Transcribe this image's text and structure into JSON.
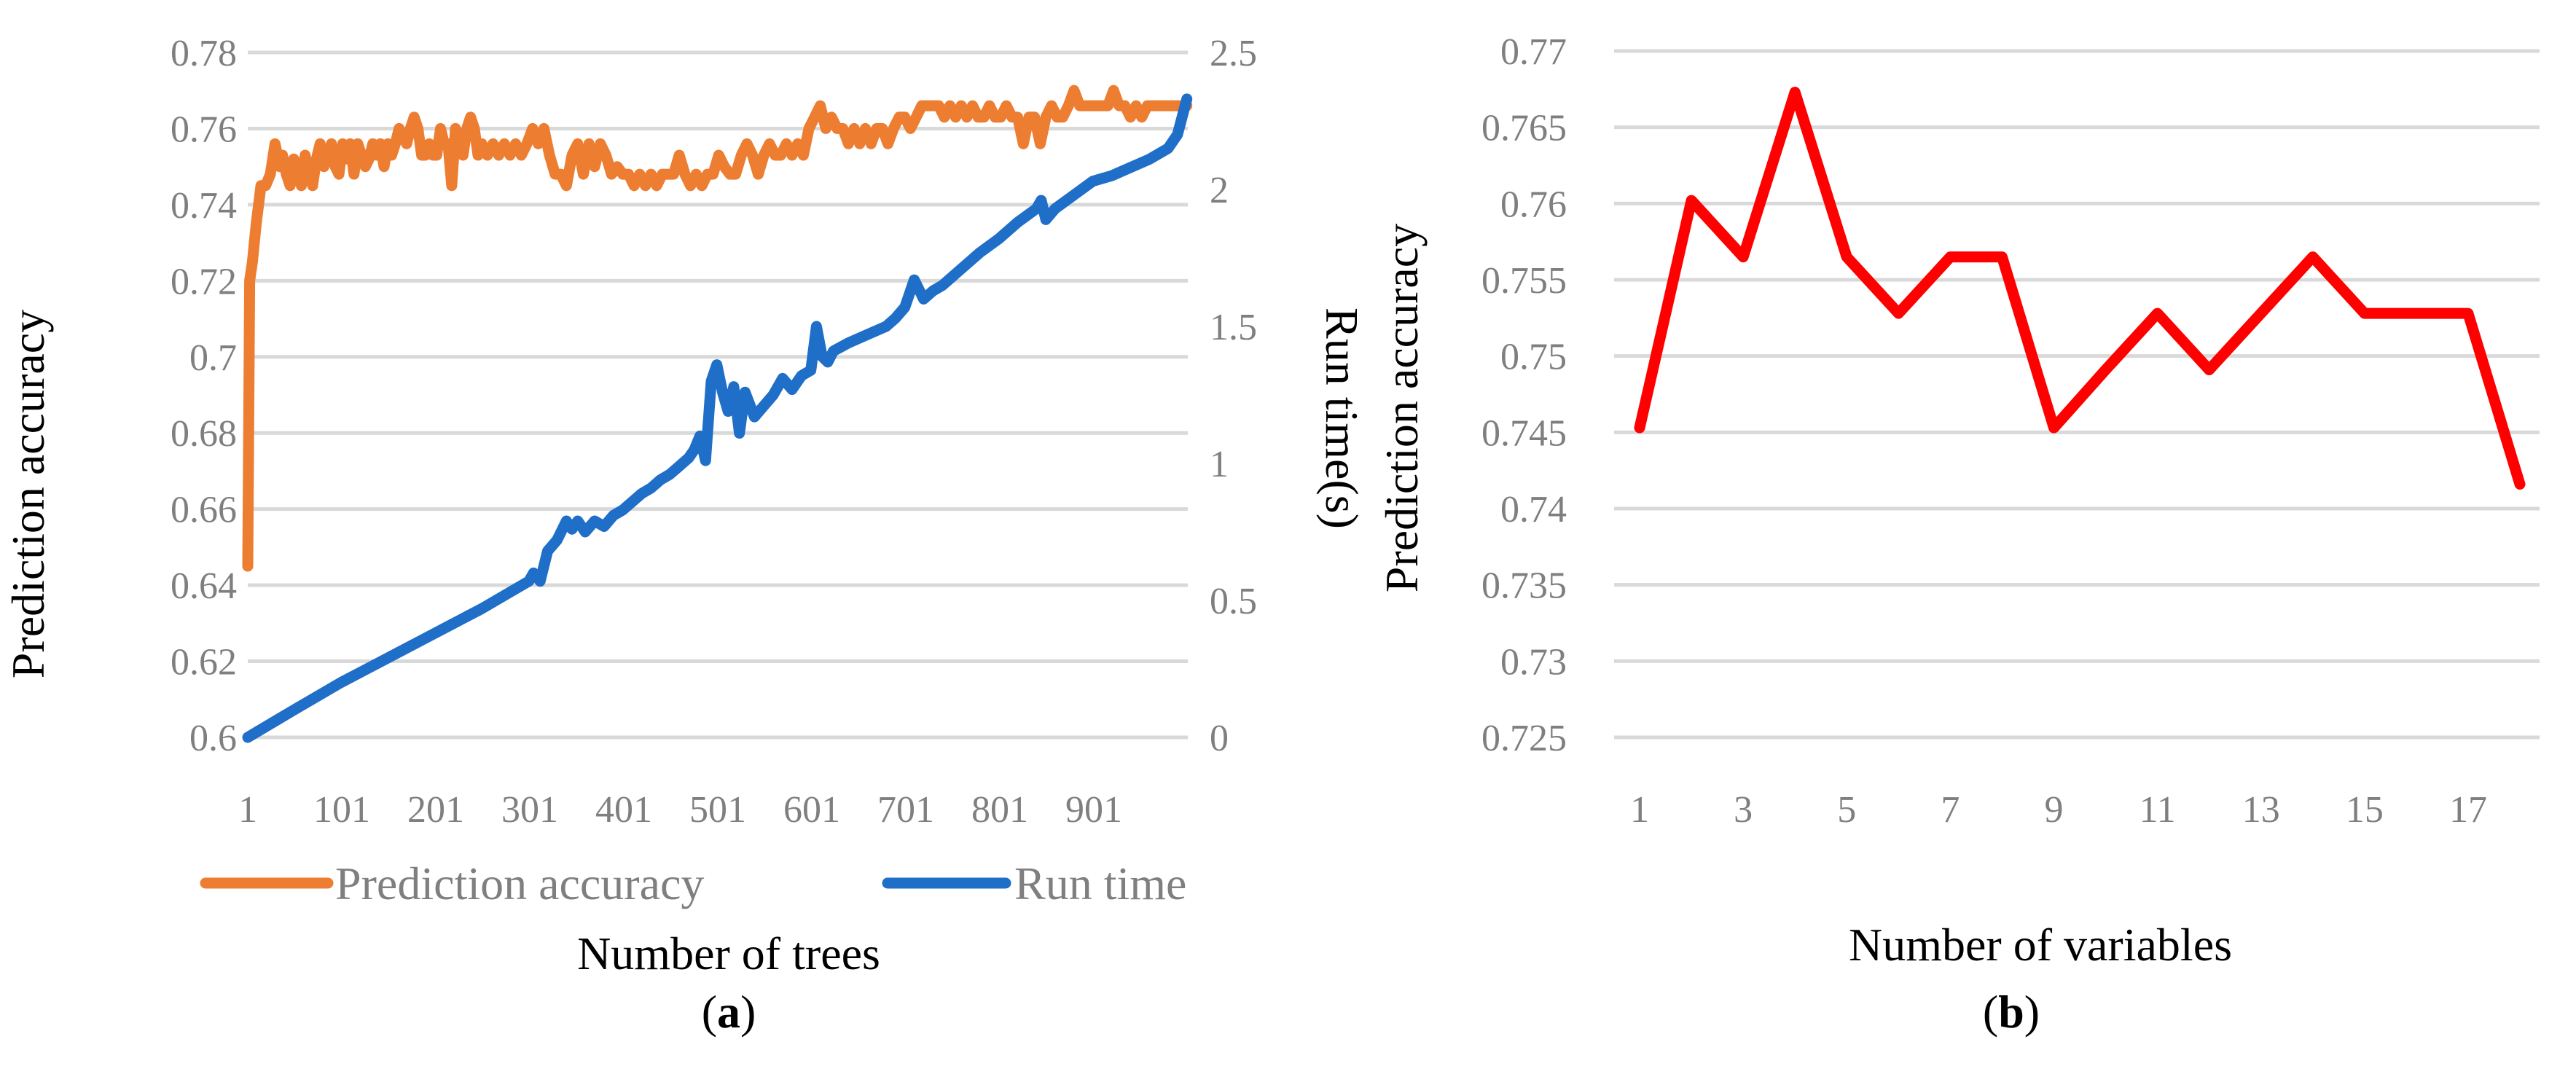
{
  "chart_data": [
    {
      "panel_label": "a",
      "type": "line",
      "xlabel": "Number of trees",
      "ylabel": "Prediction accuracy",
      "y2label": "Run time(s)",
      "xlim": [
        1,
        1001
      ],
      "ylim": [
        0.6,
        0.78
      ],
      "y2lim": [
        0,
        2.5
      ],
      "x_ticks": [
        "1",
        "101",
        "201",
        "301",
        "401",
        "501",
        "601",
        "701",
        "801",
        "901"
      ],
      "y_ticks": [
        "0.78",
        "0.76",
        "0.74",
        "0.72",
        "0.7",
        "0.68",
        "0.66",
        "0.64",
        "0.62",
        "0.6"
      ],
      "y2_ticks": [
        "2.5",
        "2",
        "1.5",
        "1",
        "0.5",
        "0"
      ],
      "grid": true,
      "legend_position": "bottom",
      "series": [
        {
          "name": "Prediction accuracy",
          "axis": "left",
          "color": "#ED7D31",
          "x": [
            1,
            3,
            6,
            10,
            15,
            20,
            25,
            30,
            35,
            38,
            42,
            46,
            50,
            54,
            58,
            62,
            66,
            70,
            74,
            78,
            82,
            86,
            90,
            94,
            98,
            102,
            106,
            110,
            114,
            118,
            122,
            126,
            130,
            134,
            138,
            142,
            146,
            150,
            154,
            158,
            162,
            166,
            170,
            174,
            178,
            182,
            186,
            190,
            194,
            198,
            202,
            206,
            210,
            214,
            218,
            222,
            226,
            230,
            234,
            238,
            242,
            246,
            250,
            256,
            262,
            268,
            274,
            280,
            286,
            292,
            298,
            304,
            310,
            316,
            322,
            328,
            334,
            340,
            346,
            352,
            358,
            364,
            370,
            376,
            382,
            388,
            394,
            400,
            406,
            412,
            418,
            424,
            430,
            436,
            442,
            448,
            454,
            460,
            466,
            472,
            478,
            484,
            490,
            496,
            502,
            508,
            514,
            520,
            526,
            532,
            538,
            544,
            550,
            556,
            562,
            568,
            574,
            580,
            586,
            592,
            598,
            604,
            610,
            616,
            622,
            628,
            634,
            640,
            646,
            652,
            658,
            664,
            670,
            676,
            682,
            688,
            694,
            700,
            706,
            712,
            718,
            724,
            730,
            736,
            742,
            748,
            754,
            760,
            766,
            772,
            778,
            784,
            790,
            796,
            802,
            808,
            814,
            820,
            826,
            832,
            838,
            844,
            850,
            856,
            862,
            868,
            874,
            880,
            886,
            892,
            898,
            904,
            910,
            916,
            922,
            928,
            934,
            940,
            946,
            952,
            958,
            964,
            970,
            976,
            982,
            988,
            994,
            1000
          ],
          "y": [
            0.645,
            0.72,
            0.725,
            0.735,
            0.745,
            0.745,
            0.748,
            0.756,
            0.75,
            0.753,
            0.748,
            0.745,
            0.752,
            0.748,
            0.745,
            0.753,
            0.748,
            0.745,
            0.752,
            0.756,
            0.75,
            0.753,
            0.756,
            0.75,
            0.748,
            0.756,
            0.752,
            0.756,
            0.748,
            0.756,
            0.753,
            0.75,
            0.752,
            0.756,
            0.753,
            0.756,
            0.75,
            0.756,
            0.753,
            0.756,
            0.76,
            0.758,
            0.756,
            0.76,
            0.763,
            0.76,
            0.753,
            0.753,
            0.756,
            0.753,
            0.753,
            0.76,
            0.756,
            0.756,
            0.745,
            0.76,
            0.756,
            0.753,
            0.76,
            0.763,
            0.76,
            0.753,
            0.756,
            0.753,
            0.756,
            0.753,
            0.756,
            0.753,
            0.756,
            0.753,
            0.756,
            0.76,
            0.756,
            0.76,
            0.753,
            0.748,
            0.748,
            0.745,
            0.753,
            0.756,
            0.748,
            0.756,
            0.75,
            0.756,
            0.753,
            0.748,
            0.75,
            0.748,
            0.748,
            0.745,
            0.748,
            0.745,
            0.748,
            0.745,
            0.748,
            0.748,
            0.748,
            0.753,
            0.748,
            0.745,
            0.748,
            0.745,
            0.748,
            0.748,
            0.753,
            0.75,
            0.748,
            0.748,
            0.753,
            0.756,
            0.753,
            0.748,
            0.753,
            0.756,
            0.753,
            0.753,
            0.756,
            0.753,
            0.756,
            0.753,
            0.76,
            0.763,
            0.766,
            0.76,
            0.763,
            0.76,
            0.76,
            0.756,
            0.76,
            0.756,
            0.76,
            0.756,
            0.76,
            0.76,
            0.756,
            0.76,
            0.763,
            0.763,
            0.76,
            0.763,
            0.766,
            0.766,
            0.766,
            0.766,
            0.763,
            0.766,
            0.763,
            0.766,
            0.763,
            0.766,
            0.763,
            0.763,
            0.766,
            0.763,
            0.763,
            0.766,
            0.763,
            0.763,
            0.756,
            0.763,
            0.763,
            0.756,
            0.763,
            0.766,
            0.763,
            0.763,
            0.766,
            0.77,
            0.766,
            0.766,
            0.766,
            0.766,
            0.766,
            0.766,
            0.77,
            0.766,
            0.766,
            0.763,
            0.766,
            0.763,
            0.766,
            0.766,
            0.766,
            0.766,
            0.766,
            0.766,
            0.766,
            0.766
          ]
        },
        {
          "name": "Run time",
          "axis": "right",
          "color": "#1F6EC8",
          "x": [
            1,
            50,
            100,
            150,
            200,
            250,
            280,
            300,
            305,
            312,
            320,
            330,
            340,
            346,
            352,
            360,
            370,
            380,
            390,
            400,
            410,
            420,
            430,
            440,
            450,
            460,
            470,
            476,
            482,
            488,
            494,
            500,
            506,
            512,
            518,
            524,
            530,
            540,
            550,
            560,
            570,
            580,
            590,
            600,
            606,
            612,
            618,
            624,
            640,
            660,
            680,
            690,
            700,
            710,
            720,
            730,
            740,
            760,
            780,
            800,
            820,
            840,
            845,
            850,
            860,
            880,
            900,
            920,
            940,
            960,
            980,
            990,
            1000
          ],
          "y": [
            0.0,
            0.1,
            0.2,
            0.29,
            0.38,
            0.47,
            0.53,
            0.57,
            0.6,
            0.57,
            0.68,
            0.72,
            0.79,
            0.76,
            0.79,
            0.75,
            0.79,
            0.77,
            0.81,
            0.83,
            0.86,
            0.89,
            0.91,
            0.94,
            0.96,
            0.99,
            1.02,
            1.05,
            1.1,
            1.01,
            1.3,
            1.36,
            1.26,
            1.19,
            1.28,
            1.11,
            1.26,
            1.17,
            1.21,
            1.25,
            1.31,
            1.27,
            1.32,
            1.34,
            1.5,
            1.39,
            1.37,
            1.41,
            1.44,
            1.47,
            1.5,
            1.53,
            1.57,
            1.67,
            1.6,
            1.63,
            1.65,
            1.71,
            1.77,
            1.82,
            1.88,
            1.93,
            1.96,
            1.89,
            1.93,
            1.98,
            2.03,
            2.05,
            2.08,
            2.11,
            2.15,
            2.2,
            2.33
          ]
        }
      ],
      "legend": [
        "Prediction accuracy",
        "Run time"
      ]
    },
    {
      "panel_label": "b",
      "type": "line",
      "xlabel": "Number of variables",
      "ylabel": "Prediction accuracy",
      "xlim": [
        1,
        18
      ],
      "ylim": [
        0.725,
        0.77
      ],
      "x_ticks": [
        "1",
        "3",
        "5",
        "7",
        "9",
        "11",
        "13",
        "15",
        "17"
      ],
      "y_ticks": [
        "0.77",
        "0.765",
        "0.76",
        "0.755",
        "0.75",
        "0.745",
        "0.74",
        "0.735",
        "0.73",
        "0.725"
      ],
      "grid": true,
      "series": [
        {
          "name": "Prediction accuracy",
          "color": "#FF0000",
          "x": [
            1,
            2,
            3,
            4,
            5,
            6,
            7,
            8,
            9,
            10,
            11,
            12,
            13,
            14,
            15,
            16,
            17,
            18
          ],
          "y": [
            0.7453,
            0.7602,
            0.7565,
            0.7673,
            0.7565,
            0.7528,
            0.7565,
            0.7565,
            0.7453,
            0.7491,
            0.7528,
            0.7491,
            0.7528,
            0.7565,
            0.7528,
            0.7528,
            0.7528,
            0.7416
          ]
        }
      ]
    }
  ]
}
